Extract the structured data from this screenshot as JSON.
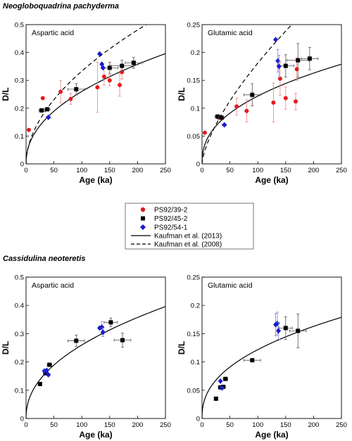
{
  "sections": [
    {
      "title": "Neogloboquadrina pachyderma"
    },
    {
      "title": "Cassidulina neoteretis"
    }
  ],
  "legend": {
    "items": [
      {
        "label": "PS92/39-2",
        "color": "#e41a1c",
        "marker": "circle"
      },
      {
        "label": "PS92/45-2",
        "color": "#000000",
        "marker": "square"
      },
      {
        "label": "PS92/54-1",
        "color": "#1a1acc",
        "marker": "diamond"
      },
      {
        "label": "Kaufman et al. (2013)",
        "style": "solid"
      },
      {
        "label": "Kaufman et al. (2008)",
        "style": "dashed"
      }
    ]
  },
  "colors": {
    "red": "#e41a1c",
    "black": "#000000",
    "blue": "#1a1acc",
    "errRed": "#f08080",
    "errBlue": "#8080e0",
    "errBlack": "#555555"
  },
  "chart_data": [
    {
      "type": "scatter",
      "section": "Neogloboquadrina pachyderma",
      "annotation": "Aspartic acid",
      "xlabel": "Age (ka)",
      "ylabel": "D/L",
      "xlim": [
        0,
        250
      ],
      "ylim": [
        0,
        0.5
      ],
      "xticks": [
        0,
        50,
        100,
        150,
        200,
        250
      ],
      "yticks": [
        0,
        0.1,
        0.2,
        0.3,
        0.4,
        0.5
      ],
      "curves": [
        {
          "name": "Kaufman et al. (2013)",
          "style": "solid",
          "a": 0.0314,
          "p": 0.459
        },
        {
          "name": "Kaufman et al. (2008)",
          "style": "dashed",
          "a": 0.029,
          "p": 0.53
        }
      ],
      "series": [
        {
          "name": "PS92/39-2",
          "marker": "circle",
          "color": "#e41a1c",
          "points": [
            {
              "x": 5,
              "y": 0.122
            },
            {
              "x": 30,
              "y": 0.236
            },
            {
              "x": 62,
              "y": 0.259,
              "yerr": 0.04
            },
            {
              "x": 80,
              "y": 0.233,
              "yerr": 0.02
            },
            {
              "x": 128,
              "y": 0.275,
              "yerr": 0.09
            },
            {
              "x": 140,
              "y": 0.313,
              "yerr": 0.03
            },
            {
              "x": 150,
              "y": 0.3,
              "yerr": 0.02
            },
            {
              "x": 168,
              "y": 0.283,
              "yerr": 0.04
            },
            {
              "x": 172,
              "y": 0.33,
              "yerr": 0.025
            }
          ]
        },
        {
          "name": "PS92/45-2",
          "marker": "square",
          "color": "#000000",
          "points": [
            {
              "x": 28,
              "y": 0.192,
              "xerr": 5
            },
            {
              "x": 38,
              "y": 0.196,
              "xerr": 5
            },
            {
              "x": 90,
              "y": 0.268,
              "xerr": 15,
              "yerr": 0.02
            },
            {
              "x": 150,
              "y": 0.345,
              "xerr": 15,
              "yerr": 0.02
            },
            {
              "x": 172,
              "y": 0.352,
              "xerr": 20,
              "yerr": 0.02
            },
            {
              "x": 193,
              "y": 0.363,
              "xerr": 15,
              "yerr": 0.02
            }
          ]
        },
        {
          "name": "PS92/54-1",
          "marker": "diamond",
          "color": "#1a1acc",
          "points": [
            {
              "x": 40,
              "y": 0.167,
              "xerr": 4
            },
            {
              "x": 132,
              "y": 0.395
            },
            {
              "x": 136,
              "y": 0.358
            },
            {
              "x": 138,
              "y": 0.345
            }
          ]
        }
      ]
    },
    {
      "type": "scatter",
      "section": "Neogloboquadrina pachyderma",
      "annotation": "Glutamic acid",
      "xlabel": "Age (ka)",
      "ylabel": "D/L",
      "xlim": [
        0,
        250
      ],
      "ylim": [
        0,
        0.25
      ],
      "xticks": [
        0,
        50,
        100,
        150,
        200,
        250
      ],
      "yticks": [
        0,
        0.05,
        0.1,
        0.15,
        0.2,
        0.25
      ],
      "curves": [
        {
          "name": "Kaufman et al. (2013)",
          "style": "solid",
          "a": 0.0176,
          "p": 0.42
        },
        {
          "name": "Kaufman et al. (2008)",
          "style": "dashed",
          "a": 0.0079,
          "p": 0.68
        }
      ],
      "series": [
        {
          "name": "PS92/39-2",
          "marker": "circle",
          "color": "#e41a1c",
          "points": [
            {
              "x": 5,
              "y": 0.056
            },
            {
              "x": 30,
              "y": 0.083
            },
            {
              "x": 62,
              "y": 0.103,
              "yerr": 0.015
            },
            {
              "x": 80,
              "y": 0.095,
              "yerr": 0.02
            },
            {
              "x": 128,
              "y": 0.11,
              "yerr": 0.035
            },
            {
              "x": 140,
              "y": 0.153,
              "yerr": 0.03
            },
            {
              "x": 150,
              "y": 0.118,
              "yerr": 0.02
            },
            {
              "x": 168,
              "y": 0.112,
              "yerr": 0.015
            },
            {
              "x": 170,
              "y": 0.17,
              "yerr": 0.02
            }
          ]
        },
        {
          "name": "PS92/45-2",
          "marker": "square",
          "color": "#000000",
          "points": [
            {
              "x": 28,
              "y": 0.085,
              "xerr": 5
            },
            {
              "x": 35,
              "y": 0.083,
              "xerr": 5
            },
            {
              "x": 90,
              "y": 0.124,
              "xerr": 15,
              "yerr": 0.02
            },
            {
              "x": 150,
              "y": 0.176,
              "xerr": 15,
              "yerr": 0.02
            },
            {
              "x": 172,
              "y": 0.186,
              "xerr": 20,
              "yerr": 0.03
            },
            {
              "x": 193,
              "y": 0.189,
              "xerr": 15,
              "yerr": 0.02
            }
          ]
        },
        {
          "name": "PS92/54-1",
          "marker": "diamond",
          "color": "#1a1acc",
          "points": [
            {
              "x": 40,
              "y": 0.07,
              "xerr": 4
            },
            {
              "x": 132,
              "y": 0.223
            },
            {
              "x": 136,
              "y": 0.185,
              "yerr": 0.02
            },
            {
              "x": 138,
              "y": 0.175,
              "yerr": 0.02
            }
          ]
        }
      ]
    },
    {
      "type": "scatter",
      "section": "Cassidulina neoteretis",
      "annotation": "Aspartic acid",
      "xlabel": "Age (ka)",
      "ylabel": "D/L",
      "xlim": [
        0,
        250
      ],
      "ylim": [
        0,
        0.5
      ],
      "xticks": [
        0,
        50,
        100,
        150,
        200,
        250
      ],
      "yticks": [
        0,
        0.1,
        0.2,
        0.3,
        0.4,
        0.5
      ],
      "curves": [
        {
          "name": "Kaufman et al. (2013)",
          "style": "solid",
          "a": 0.0314,
          "p": 0.459
        }
      ],
      "series": [
        {
          "name": "PS92/45-2",
          "marker": "square",
          "color": "#000000",
          "points": [
            {
              "x": 25,
              "y": 0.122,
              "xerr": 3
            },
            {
              "x": 35,
              "y": 0.16,
              "xerr": 4
            },
            {
              "x": 42,
              "y": 0.19,
              "xerr": 4
            },
            {
              "x": 90,
              "y": 0.275,
              "xerr": 15,
              "yerr": 0.02
            },
            {
              "x": 152,
              "y": 0.34,
              "xerr": 12,
              "yerr": 0.015
            },
            {
              "x": 173,
              "y": 0.277,
              "xerr": 15,
              "yerr": 0.025
            }
          ]
        },
        {
          "name": "PS92/54-1",
          "marker": "diamond",
          "color": "#1a1acc",
          "points": [
            {
              "x": 33,
              "y": 0.168,
              "xerr": 3
            },
            {
              "x": 37,
              "y": 0.17,
              "xerr": 3
            },
            {
              "x": 40,
              "y": 0.155,
              "xerr": 3
            },
            {
              "x": 132,
              "y": 0.32
            },
            {
              "x": 136,
              "y": 0.323,
              "yerr": 0.02
            },
            {
              "x": 138,
              "y": 0.305,
              "yerr": 0.015
            }
          ]
        }
      ]
    },
    {
      "type": "scatter",
      "section": "Cassidulina neoteretis",
      "annotation": "Glutamic acid",
      "xlabel": "Age (ka)",
      "ylabel": "D/L",
      "xlim": [
        0,
        250
      ],
      "ylim": [
        0,
        0.25
      ],
      "xticks": [
        0,
        50,
        100,
        150,
        200,
        250
      ],
      "yticks": [
        0,
        0.05,
        0.1,
        0.15,
        0.2,
        0.25
      ],
      "curves": [
        {
          "name": "Kaufman et al. (2013)",
          "style": "solid",
          "a": 0.0176,
          "p": 0.42
        }
      ],
      "series": [
        {
          "name": "PS92/45-2",
          "marker": "square",
          "color": "#000000",
          "points": [
            {
              "x": 25,
              "y": 0.035,
              "xerr": 3
            },
            {
              "x": 33,
              "y": 0.055,
              "xerr": 4
            },
            {
              "x": 38,
              "y": 0.056,
              "xerr": 4
            },
            {
              "x": 42,
              "y": 0.07,
              "xerr": 4
            },
            {
              "x": 90,
              "y": 0.103,
              "xerr": 15
            },
            {
              "x": 150,
              "y": 0.16,
              "xerr": 12,
              "yerr": 0.02
            },
            {
              "x": 172,
              "y": 0.155,
              "xerr": 15,
              "yerr": 0.03
            }
          ]
        },
        {
          "name": "PS92/54-1",
          "marker": "diamond",
          "color": "#1a1acc",
          "points": [
            {
              "x": 33,
              "y": 0.066
            },
            {
              "x": 36,
              "y": 0.054
            },
            {
              "x": 132,
              "y": 0.166,
              "yerr": 0.02
            },
            {
              "x": 135,
              "y": 0.168,
              "yerr": 0.02
            },
            {
              "x": 137,
              "y": 0.155,
              "yerr": 0.015
            }
          ]
        }
      ]
    }
  ]
}
